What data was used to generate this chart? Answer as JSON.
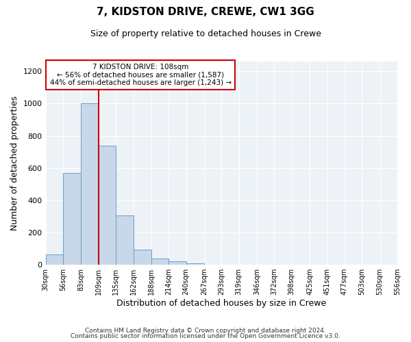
{
  "title1": "7, KIDSTON DRIVE, CREWE, CW1 3GG",
  "title2": "Size of property relative to detached houses in Crewe",
  "xlabel": "Distribution of detached houses by size in Crewe",
  "ylabel": "Number of detached properties",
  "bin_edges": [
    30,
    56,
    83,
    109,
    135,
    162,
    188,
    214,
    240,
    267,
    293,
    319,
    346,
    372,
    398,
    425,
    451,
    477,
    503,
    530,
    556
  ],
  "bar_heights": [
    65,
    570,
    1000,
    740,
    305,
    95,
    40,
    20,
    10,
    0,
    0,
    0,
    0,
    0,
    0,
    0,
    0,
    0,
    0,
    0
  ],
  "bar_color": "#c8d8ea",
  "bar_edge_color": "#6a9fc0",
  "property_line_x": 109,
  "property_line_color": "#cc0000",
  "ylim": [
    0,
    1260
  ],
  "yticks": [
    0,
    200,
    400,
    600,
    800,
    1000,
    1200
  ],
  "annotation_line1": "7 KIDSTON DRIVE: 108sqm",
  "annotation_line2": "← 56% of detached houses are smaller (1,587)",
  "annotation_line3": "44% of semi-detached houses are larger (1,243) →",
  "annotation_box_color": "#cc0000",
  "footer1": "Contains HM Land Registry data © Crown copyright and database right 2024.",
  "footer2": "Contains public sector information licensed under the Open Government Licence v3.0.",
  "background_color": "#edf2f7",
  "grid_color": "#ffffff",
  "tick_labels": [
    "30sqm",
    "56sqm",
    "83sqm",
    "109sqm",
    "135sqm",
    "162sqm",
    "188sqm",
    "214sqm",
    "240sqm",
    "267sqm",
    "293sqm",
    "319sqm",
    "346sqm",
    "372sqm",
    "398sqm",
    "425sqm",
    "451sqm",
    "477sqm",
    "503sqm",
    "530sqm",
    "556sqm"
  ],
  "title1_fontsize": 11,
  "title2_fontsize": 9,
  "xlabel_fontsize": 9,
  "ylabel_fontsize": 9,
  "ytick_fontsize": 8,
  "xtick_fontsize": 7,
  "annotation_fontsize": 7.5,
  "footer_fontsize": 6.5
}
